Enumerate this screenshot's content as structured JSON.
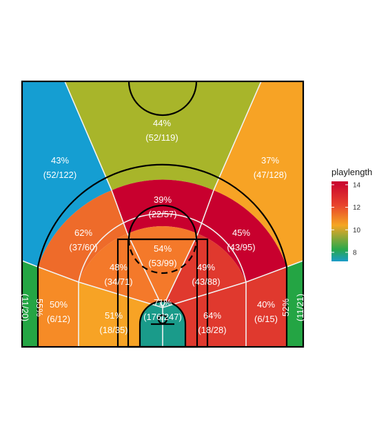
{
  "chart_data": {
    "type": "heatmap",
    "title": "",
    "xlabel": "",
    "ylabel": "",
    "legend": {
      "title": "playlength",
      "position": "right",
      "range": [
        7.2,
        14.3
      ],
      "ticks": [
        8,
        10,
        12,
        14
      ],
      "tick_labels": [
        "8",
        "10",
        "12",
        "14"
      ],
      "colors": [
        "#1a9cc9",
        "#2aa84a",
        "#f5a623",
        "#e8452c",
        "#c8002e"
      ]
    },
    "zones": [
      {
        "id": "left-corner-3",
        "pct": "55%",
        "made_att": "(11/20)",
        "makes": 11,
        "attempts": 20,
        "playlength": 8.0,
        "color": "#24a544"
      },
      {
        "id": "right-corner-3",
        "pct": "52%",
        "made_att": "(11/21)",
        "makes": 11,
        "attempts": 21,
        "playlength": 8.0,
        "color": "#24a544"
      },
      {
        "id": "left-wing-3",
        "pct": "43%",
        "made_att": "(52/122)",
        "makes": 52,
        "attempts": 122,
        "playlength": 7.5,
        "color": "#159ed2"
      },
      {
        "id": "top-3",
        "pct": "44%",
        "made_att": "(52/119)",
        "makes": 52,
        "attempts": 119,
        "playlength": 9.0,
        "color": "#a8b52a"
      },
      {
        "id": "right-wing-3",
        "pct": "37%",
        "made_att": "(47/128)",
        "makes": 47,
        "attempts": 128,
        "playlength": 10.5,
        "color": "#f7a325"
      },
      {
        "id": "top-long-2",
        "pct": "39%",
        "made_att": "(22/57)",
        "makes": 22,
        "attempts": 57,
        "playlength": 14.0,
        "color": "#c8002e"
      },
      {
        "id": "left-wing-long-2",
        "pct": "62%",
        "made_att": "(37/60)",
        "makes": 37,
        "attempts": 60,
        "playlength": 12.0,
        "color": "#ee6b2a"
      },
      {
        "id": "right-wing-long-2",
        "pct": "45%",
        "made_att": "(43/95)",
        "makes": 43,
        "attempts": 95,
        "playlength": 14.0,
        "color": "#c8002e"
      },
      {
        "id": "left-baseline-long-2",
        "pct": "50%",
        "made_att": "(6/12)",
        "makes": 6,
        "attempts": 12,
        "playlength": 11.0,
        "color": "#f68b26"
      },
      {
        "id": "right-baseline-long-2",
        "pct": "40%",
        "made_att": "(6/15)",
        "makes": 6,
        "attempts": 15,
        "playlength": 13.0,
        "color": "#e0392e"
      },
      {
        "id": "top-mid",
        "pct": "54%",
        "made_att": "(53/99)",
        "makes": 53,
        "attempts": 99,
        "playlength": 11.5,
        "color": "#f4792a"
      },
      {
        "id": "left-mid",
        "pct": "48%",
        "made_att": "(34/71)",
        "makes": 34,
        "attempts": 71,
        "playlength": 11.5,
        "color": "#f4792a"
      },
      {
        "id": "right-mid",
        "pct": "49%",
        "made_att": "(43/88)",
        "makes": 43,
        "attempts": 88,
        "playlength": 13.0,
        "color": "#e0392e"
      },
      {
        "id": "left-baseline-mid",
        "pct": "51%",
        "made_att": "(18/35)",
        "makes": 18,
        "attempts": 35,
        "playlength": 10.5,
        "color": "#f7a325"
      },
      {
        "id": "right-baseline-mid",
        "pct": "64%",
        "made_att": "(18/28)",
        "makes": 18,
        "attempts": 28,
        "playlength": 13.0,
        "color": "#e0392e"
      },
      {
        "id": "restricted-area",
        "pct": "71%",
        "made_att": "(176/247)",
        "makes": 176,
        "attempts": 247,
        "playlength": 8.3,
        "color": "#1a9b8a"
      }
    ]
  }
}
